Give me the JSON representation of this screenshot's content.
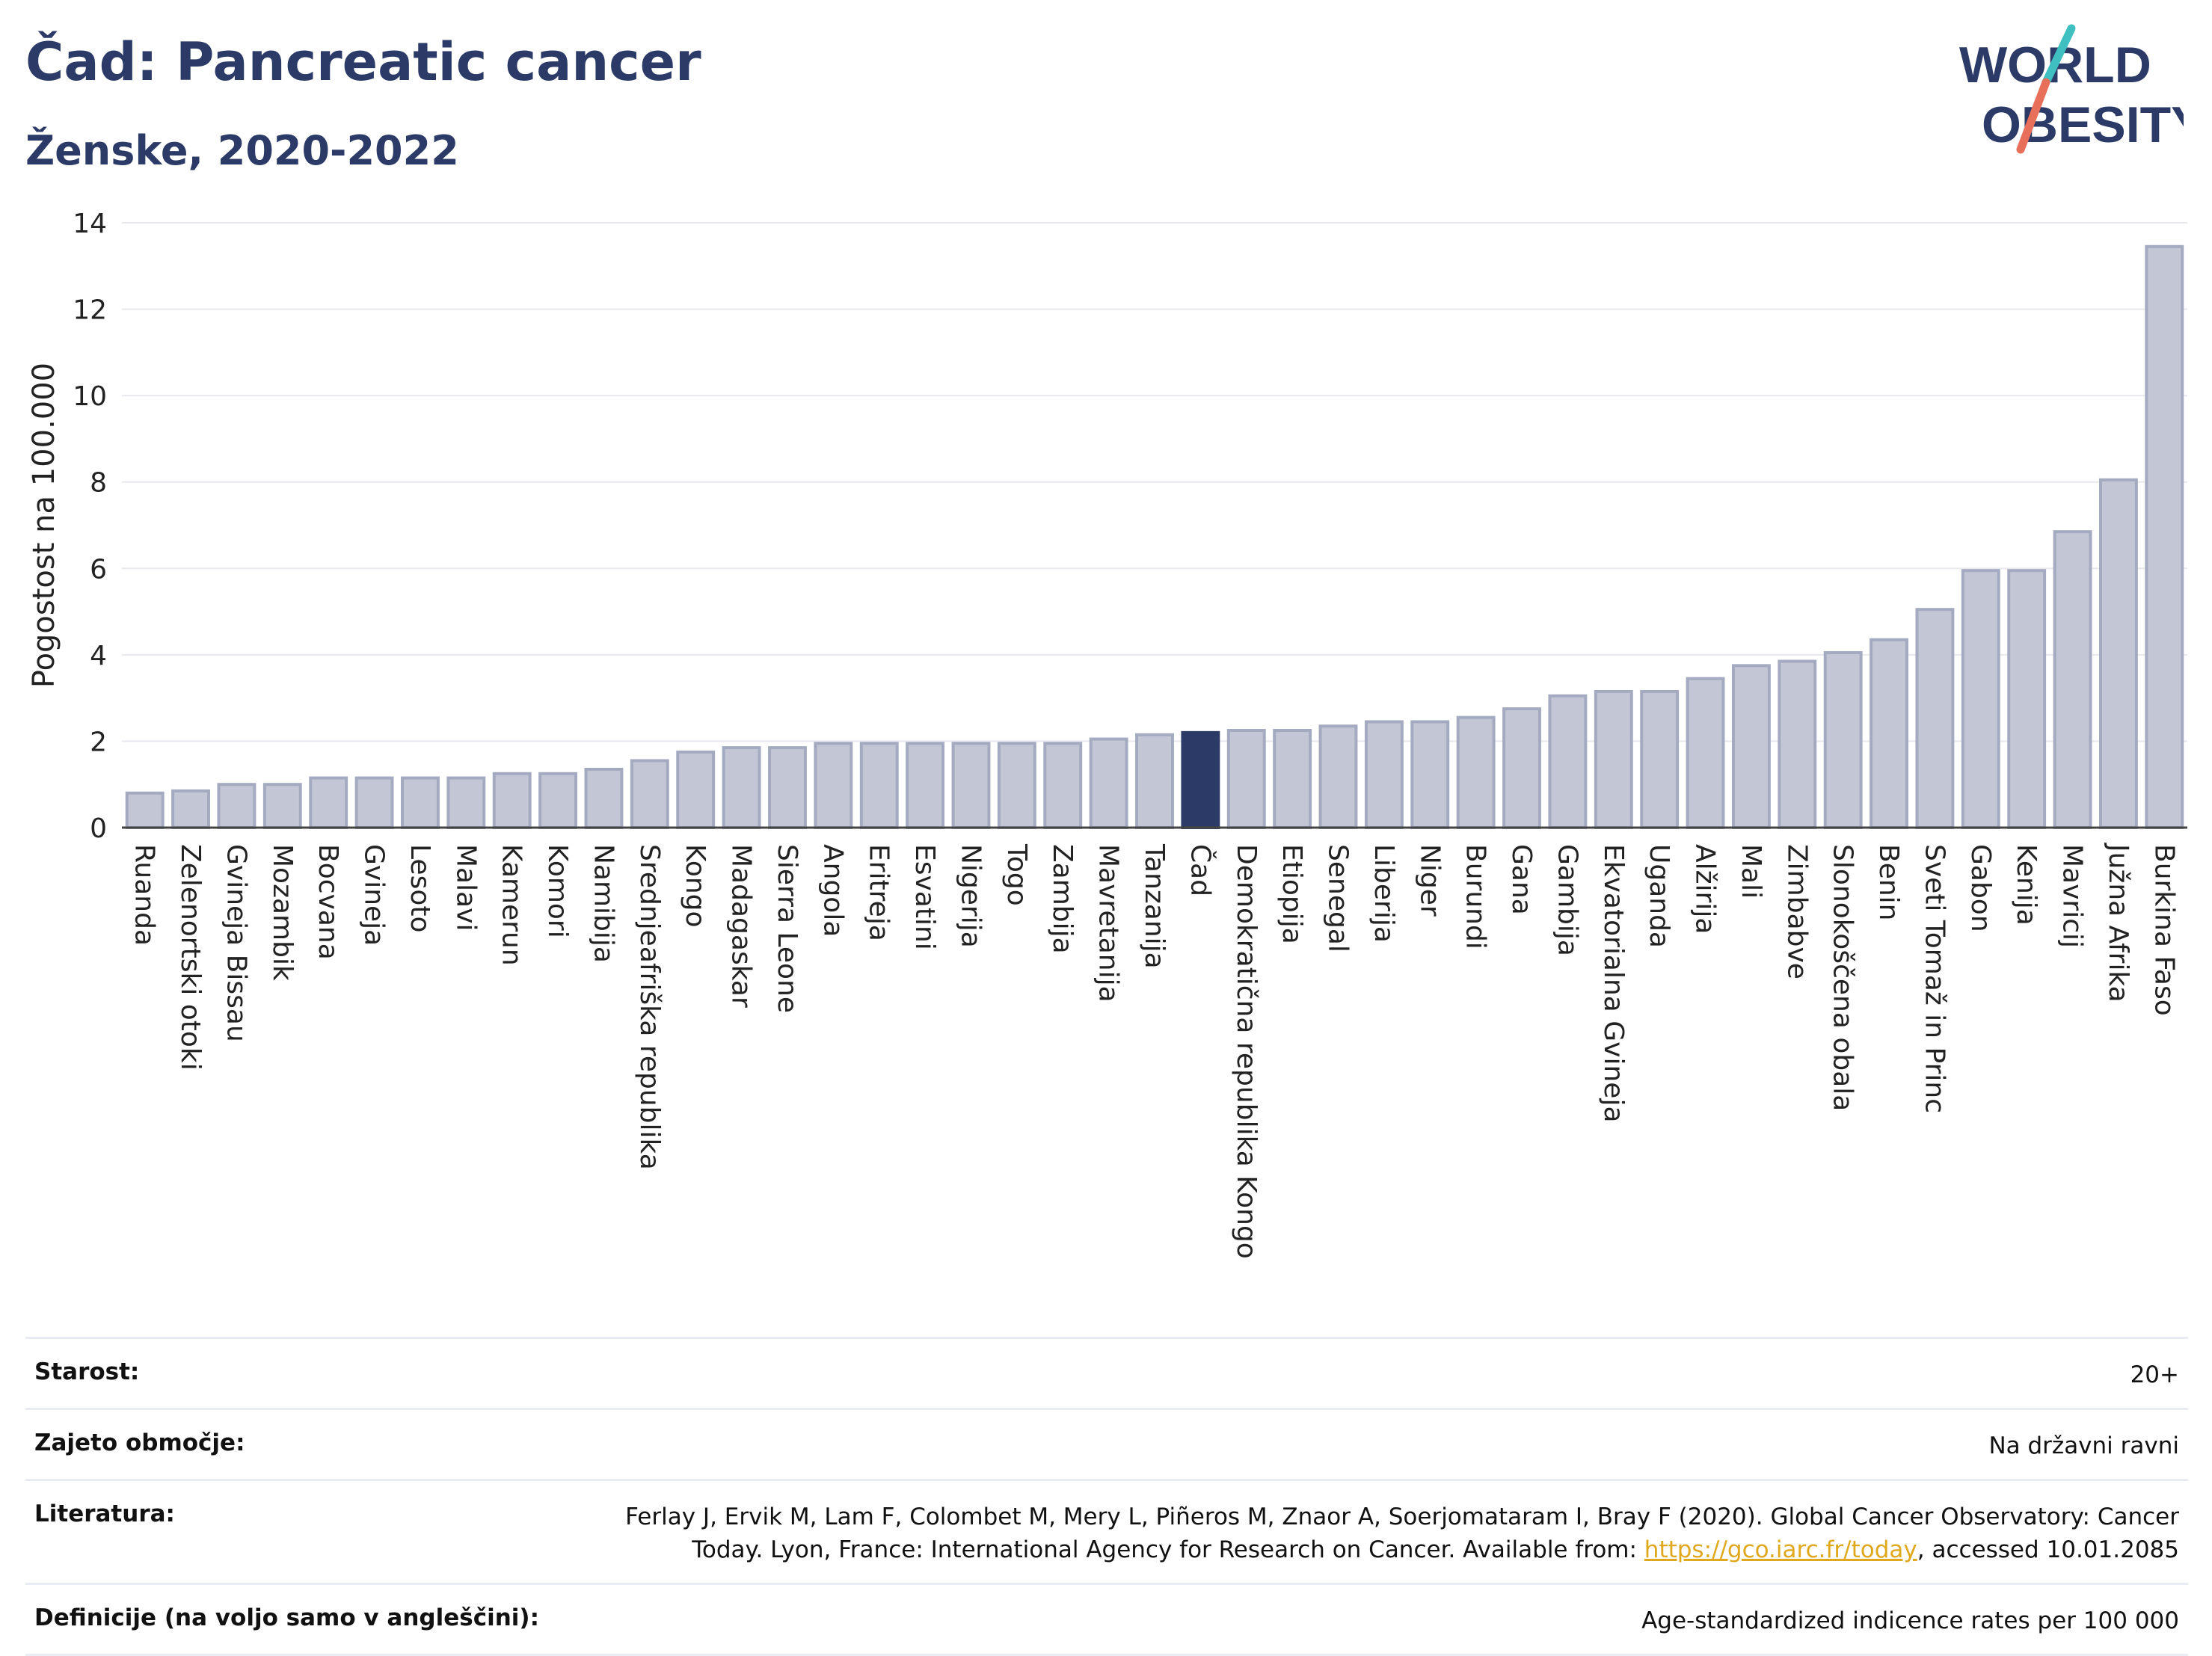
{
  "header": {
    "title": "Čad: Pancreatic cancer",
    "subtitle": "Ženske, 2020-2022"
  },
  "logo": {
    "line1": "WORLD",
    "line2": "OBESITY"
  },
  "colors": {
    "highlight": "#2b3a67",
    "bar": "#c3c7d5",
    "bar_edge": "#a4aac0",
    "grid": "#e8e8ee",
    "accent_teal": "#3fbfbf",
    "accent_coral": "#e8705a"
  },
  "chart_data": {
    "type": "bar",
    "ylabel": "Pogostost na 100.000",
    "ylim": [
      0,
      14
    ],
    "yticks": [
      0,
      2,
      4,
      6,
      8,
      10,
      12,
      14
    ],
    "highlight": "Čad",
    "grid": true,
    "categories": [
      "Ruanda",
      "Zelenortski otoki",
      "Gvineja Bissau",
      "Mozambik",
      "Bocvana",
      "Gvineja",
      "Lesoto",
      "Malavi",
      "Kamerun",
      "Komori",
      "Namibija",
      "Srednjeafriška republika",
      "Kongo",
      "Madagaskar",
      "Sierra Leone",
      "Angola",
      "Eritreja",
      "Esvatini",
      "Nigerija",
      "Togo",
      "Zambija",
      "Mavretanija",
      "Tanzanija",
      "Čad",
      "Demokratična republika Kongo",
      "Etiopija",
      "Senegal",
      "Liberija",
      "Niger",
      "Burundi",
      "Gana",
      "Gambija",
      "Ekvatorialna Gvineja",
      "Uganda",
      "Alžirija",
      "Mali",
      "Zimbabve",
      "Slonokoščena obala",
      "Benin",
      "Sveti Tomaž in Princ",
      "Gabon",
      "Kenija",
      "Mavricij",
      "Južna Afrika",
      "Burkina Faso"
    ],
    "values": [
      0.8,
      0.85,
      1.0,
      1.0,
      1.15,
      1.15,
      1.15,
      1.15,
      1.25,
      1.25,
      1.35,
      1.55,
      1.75,
      1.85,
      1.85,
      1.95,
      1.95,
      1.95,
      1.95,
      1.95,
      1.95,
      2.05,
      2.15,
      2.2,
      2.25,
      2.25,
      2.35,
      2.45,
      2.45,
      2.55,
      2.75,
      3.05,
      3.15,
      3.15,
      3.45,
      3.75,
      3.85,
      4.05,
      4.35,
      5.05,
      5.95,
      5.95,
      6.85,
      8.05,
      13.45
    ]
  },
  "meta": [
    {
      "label": "Starost:",
      "value": "20+"
    },
    {
      "label": "Zajeto območje:",
      "value": "Na državni ravni"
    },
    {
      "label": "Literatura:",
      "value_pre": "Ferlay J, Ervik M, Lam F, Colombet M, Mery L, Piñeros M, Znaor A, Soerjomataram I, Bray F (2020). Global Cancer Observatory: Cancer Today. Lyon, France: International Agency for Research on Cancer. Available from: ",
      "link": "https://gco.iarc.fr/today",
      "value_post": ", accessed 10.01.2085"
    },
    {
      "label": "Definicije (na voljo samo v angleščini):",
      "value": "Age-standardized indicence rates per 100 000"
    }
  ]
}
